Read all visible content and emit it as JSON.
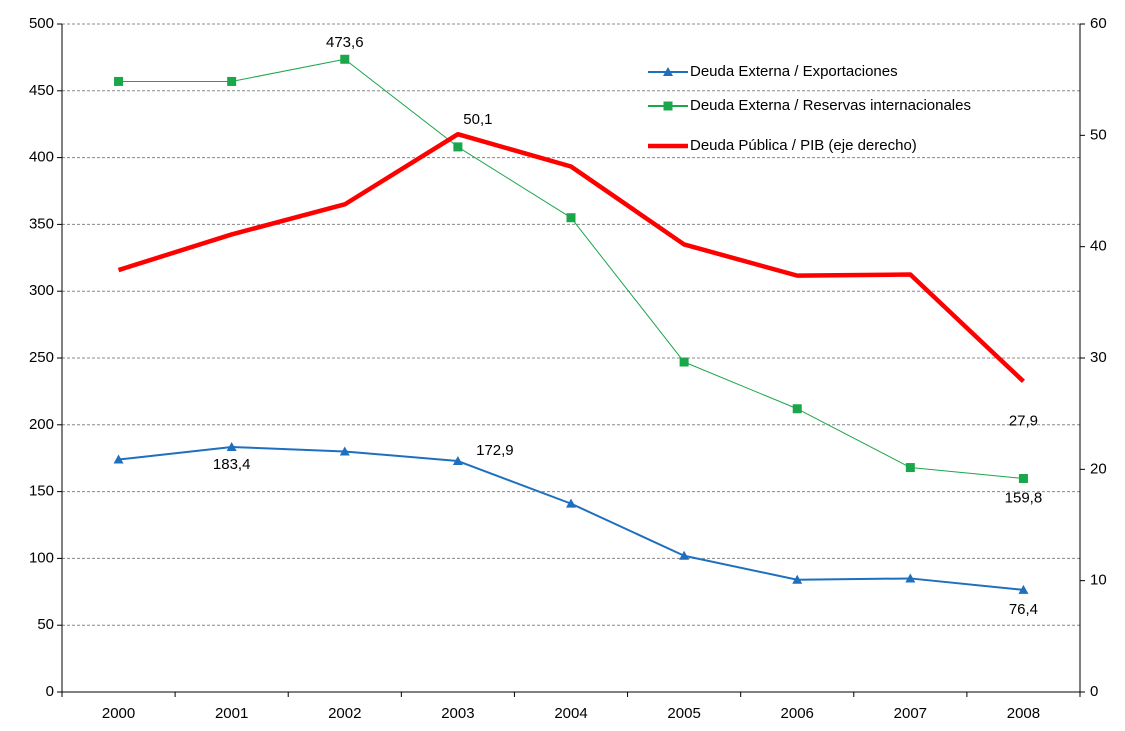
{
  "chart_data": {
    "type": "line",
    "categories": [
      "2000",
      "2001",
      "2002",
      "2003",
      "2004",
      "2005",
      "2006",
      "2007",
      "2008"
    ],
    "series": [
      {
        "name": "Deuda Externa / Exportaciones",
        "color": "#1f6fbf",
        "marker": "triangle",
        "values": [
          174,
          183.4,
          180,
          172.9,
          141,
          102,
          84,
          85,
          76.4
        ],
        "value_labels": [
          null,
          "183,4",
          null,
          "172,9",
          null,
          null,
          null,
          null,
          "76,4"
        ]
      },
      {
        "name": "Deuda Externa / Reservas internacionales",
        "color": "#1aa64a",
        "marker": "square",
        "values": [
          457,
          457,
          473.6,
          408,
          355,
          247,
          212,
          168,
          159.8
        ],
        "value_labels": [
          null,
          null,
          "473,6",
          null,
          null,
          null,
          null,
          null,
          "159,8"
        ]
      },
      {
        "name": "Deuda Pública / PIB (eje derecho)",
        "color": "#ff0000",
        "axis": "y2",
        "values": [
          37.9,
          41.1,
          43.8,
          50.1,
          47.2,
          40.2,
          37.4,
          37.5,
          27.9
        ],
        "value_labels": [
          null,
          null,
          null,
          "50,1",
          null,
          null,
          null,
          null,
          "27,9"
        ]
      }
    ],
    "ylim": [
      0,
      500
    ],
    "yticks": [
      0,
      50,
      100,
      150,
      200,
      250,
      300,
      350,
      400,
      450,
      500
    ],
    "y2lim": [
      0,
      60
    ],
    "y2ticks": [
      0,
      10,
      20,
      30,
      40,
      50,
      60
    ],
    "grid": true,
    "legend": "top-right"
  }
}
